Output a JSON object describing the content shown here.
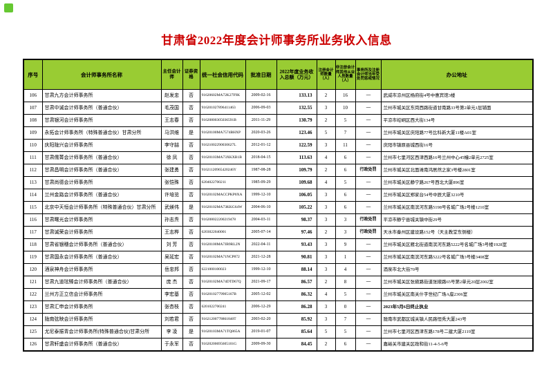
{
  "page": {
    "title": "甘肃省2022年度会计师事务所业务收入信息",
    "title_color": "#cc0000",
    "header_bg": "#99cc33",
    "corner_marker_color": "#66c832",
    "border_color": "#000000"
  },
  "table": {
    "columns": [
      {
        "id": "no",
        "label": "序号"
      },
      {
        "id": "name",
        "label": "会计师事务所名称"
      },
      {
        "id": "chief",
        "label": "主任会计师"
      },
      {
        "id": "securities",
        "label": "证券资格"
      },
      {
        "id": "code",
        "label": "统一社会信用代码"
      },
      {
        "id": "date",
        "label": "批准日期"
      },
      {
        "id": "income",
        "label": "2022年度业务收入总额（万元）"
      },
      {
        "id": "cpas",
        "label": "注册会计师数量（人）"
      },
      {
        "id": "staff",
        "label": "非注册会计师其他从业人员数量（人）"
      },
      {
        "id": "penalty",
        "label": "事务所及注册会计师当年受处罚惩戒情况"
      },
      {
        "id": "address",
        "label": "办公地址"
      }
    ],
    "rows": [
      {
        "no": "106",
        "name": "甘肃九方会计师事务所",
        "chief": "赵发忠",
        "securities": "否",
        "code": "91620602MA72K27F9K",
        "date": "2009-02-16",
        "income": "133.13",
        "cpas": "2",
        "staff": "16",
        "penalty": "------",
        "address": "武威市凉州区杨府街4号中惠宾馆3楼"
      },
      {
        "no": "107",
        "name": "甘肃中诚会计师事务所（普通合伙）",
        "chief": "毛茂国",
        "securities": "否",
        "code": "916201027896411463",
        "date": "2006-09-03",
        "income": "132.55",
        "cpas": "3",
        "staff": "10",
        "penalty": "------",
        "address": "兰州市城关区东岗西路街道甘南路33号第2单元1层铺面"
      },
      {
        "no": "108",
        "name": "甘肃银河会计师事务所",
        "chief": "王志春",
        "securities": "否",
        "code": "91620800305036591B",
        "date": "2011-11-29",
        "income": "130.79",
        "cpas": "2",
        "staff": "5",
        "penalty": "------",
        "address": "平凉市崆峒区西大街134号"
      },
      {
        "no": "109",
        "name": "永拓会计师事务所（特殊普通合伙）甘肃分所",
        "chief": "马洪维",
        "securities": "是",
        "code": "91620100MA7574BHXP",
        "date": "2020-03-26",
        "income": "123.46",
        "cpas": "5",
        "staff": "7",
        "penalty": "------",
        "address": "兰州市城关区庆阳路77号比科新大厦11楼A01室"
      },
      {
        "no": "110",
        "name": "庆阳陇兴会计师事务所",
        "chief": "李守喆",
        "securities": "否",
        "code": "91621002290030627L",
        "date": "2012-01-12",
        "income": "122.59",
        "cpas": "3",
        "staff": "11",
        "penalty": "------",
        "address": "庆阳市镇原县城西街16号"
      },
      {
        "no": "111",
        "name": "甘肃儒菁会计师事务所（普通合伙）",
        "chief": "徐 凤",
        "securities": "否",
        "code": "91620103MA73XKXB1B",
        "date": "2018-04-15",
        "income": "113.63",
        "cpas": "4",
        "staff": "6",
        "penalty": "------",
        "address": "兰州市七里河区西津西路16号兰州中心45幢2单元2725室"
      },
      {
        "no": "112",
        "name": "甘肃昌明会计师事务所（普通合伙）",
        "chief": "张建勇",
        "securities": "否",
        "code": "91621120965420246Y",
        "date": "1987-08-28",
        "income": "109.79",
        "cpas": "2",
        "staff": "6",
        "penalty": "行政处罚",
        "address": "兰州市城关区北面滩南鸿居然之家3号楼2801室"
      },
      {
        "no": "113",
        "name": "甘肃尚德会计师事务所",
        "chief": "张恺殊",
        "securities": "否",
        "code": "6204022700211",
        "date": "1985-09-29",
        "income": "109.68",
        "cpas": "4",
        "staff": "5",
        "penalty": "------",
        "address": "兰州市城关区静宁路267号西北大厦896室"
      },
      {
        "no": "114",
        "name": "兰州金路会计师事务所（普通合伙）",
        "chief": "许培览",
        "securities": "否",
        "code": "91620102MACCPKP0XA",
        "date": "1999-12-10",
        "income": "106.05",
        "cpas": "3",
        "staff": "6",
        "penalty": "------",
        "address": "兰州市城关区郑家台54号中辰大厦3210号"
      },
      {
        "no": "115",
        "name": "北京中天恒会计师事务所（特殊普通合伙）甘肃分所",
        "chief": "武媄伟",
        "securities": "是",
        "code": "91620102MA73KKG64W",
        "date": "2004-06-10",
        "income": "105.22",
        "cpas": "3",
        "staff": "6",
        "penalty": "------",
        "address": "兰州市城关区南滨河东路5198号名城广场2号楼1210室"
      },
      {
        "no": "116",
        "name": "甘肃曙光会计师事务所",
        "chief": "孙志焘",
        "securities": "否",
        "code": "916208022200219478",
        "date": "2004-03-11",
        "income": "98.37",
        "cpas": "3",
        "staff": "3",
        "penalty": "行政处罚",
        "address": "平凉市静宁县城关镇中街29号"
      },
      {
        "no": "117",
        "name": "甘肃诚荣会计师事务所",
        "chief": "王志桦",
        "securities": "否",
        "code": "6203022040001",
        "date": "2005-07-14",
        "income": "97.46",
        "cpas": "2",
        "staff": "3",
        "penalty": "行政处罚",
        "address": "天水市秦州区建设路152号（天主教堂东侧楼）"
      },
      {
        "no": "118",
        "name": "甘肃省银穗会计师事务所（普通合伙）",
        "chief": "刘 芳",
        "securities": "否",
        "code": "91620100MA7JB9RL2N",
        "date": "2022-04-11",
        "income": "93.43",
        "cpas": "3",
        "staff": "9",
        "penalty": "------",
        "address": "兰州市城关区雁北街道南滨河东路5222号名城广场3号楼1928室"
      },
      {
        "no": "119",
        "name": "甘肃国永会计师事务所（普通合伙）",
        "chief": "吴延宏",
        "securities": "否",
        "code": "91620102MA71NCP872",
        "date": "2021-12-28",
        "income": "90.81",
        "cpas": "3",
        "staff": "1",
        "penalty": "------",
        "address": "兰州市城关区南滨河东路5222号名城广场3号楼3408室"
      },
      {
        "no": "120",
        "name": "酒泉神舟会计师事务所",
        "chief": "岳忠邦",
        "securities": "否",
        "code": "6221000100023",
        "date": "1999-12-10",
        "income": "88.14",
        "cpas": "3",
        "staff": "4",
        "penalty": "------",
        "address": "酒泉市北大街70号"
      },
      {
        "no": "121",
        "name": "甘肃九道玹臻会计师事务所（普通合伙）",
        "chief": "庞 杰",
        "securities": "否",
        "code": "91620102MA74DTD67Q",
        "date": "2021-09-17",
        "income": "86.57",
        "cpas": "2",
        "staff": "8",
        "penalty": "------",
        "address": "兰州市城关区张掖路街道张掖路65号第2单元20层2002室"
      },
      {
        "no": "122",
        "name": "兰州方正立信会计师事务所",
        "chief": "李宏基",
        "securities": "否",
        "code": "91620102779905167B",
        "date": "2005-12-02",
        "income": "86.32",
        "cpas": "4",
        "staff": "5",
        "penalty": "------",
        "address": "兰州市城关区南关什字世纪广场A座2306室"
      },
      {
        "no": "123",
        "name": "甘肃汇申会计师事务所",
        "chief": "张杏枝",
        "securities": "否",
        "code": "6201022700241",
        "date": "2006-12-29",
        "income": "86.28",
        "cpas": "3",
        "staff": "0",
        "penalty": "------",
        "address": "2023年5月6日终止执业"
      },
      {
        "no": "124",
        "name": "陇南弦映会计师事务所",
        "chief": "刘若君",
        "securities": "否",
        "code": "91621200778861840T",
        "date": "2003-02-20",
        "income": "85.92",
        "cpas": "3",
        "staff": "7",
        "penalty": "------",
        "address": "陇南市武都区城关镇人民路恒秀大厦243号"
      },
      {
        "no": "125",
        "name": "尤尼泰振青会计师事务所(特殊普通合伙)甘肃分所",
        "chief": "李 凌",
        "securities": "是",
        "code": "91620103MA71TQ865A",
        "date": "2019-01-07",
        "income": "85.64",
        "cpas": "5",
        "staff": "5",
        "penalty": "------",
        "address": "兰州市七里河区西津东路178号二建大厦2119室"
      },
      {
        "no": "126",
        "name": "甘肃轩盛会计师事务所（普通合伙）",
        "chief": "于永军",
        "securities": "否",
        "code": "91620200695605101G",
        "date": "2009-09-30",
        "income": "84.45",
        "cpas": "2",
        "staff": "6",
        "penalty": "------",
        "address": "嘉峪关市建关区政和街11-4-5-6号"
      }
    ]
  }
}
